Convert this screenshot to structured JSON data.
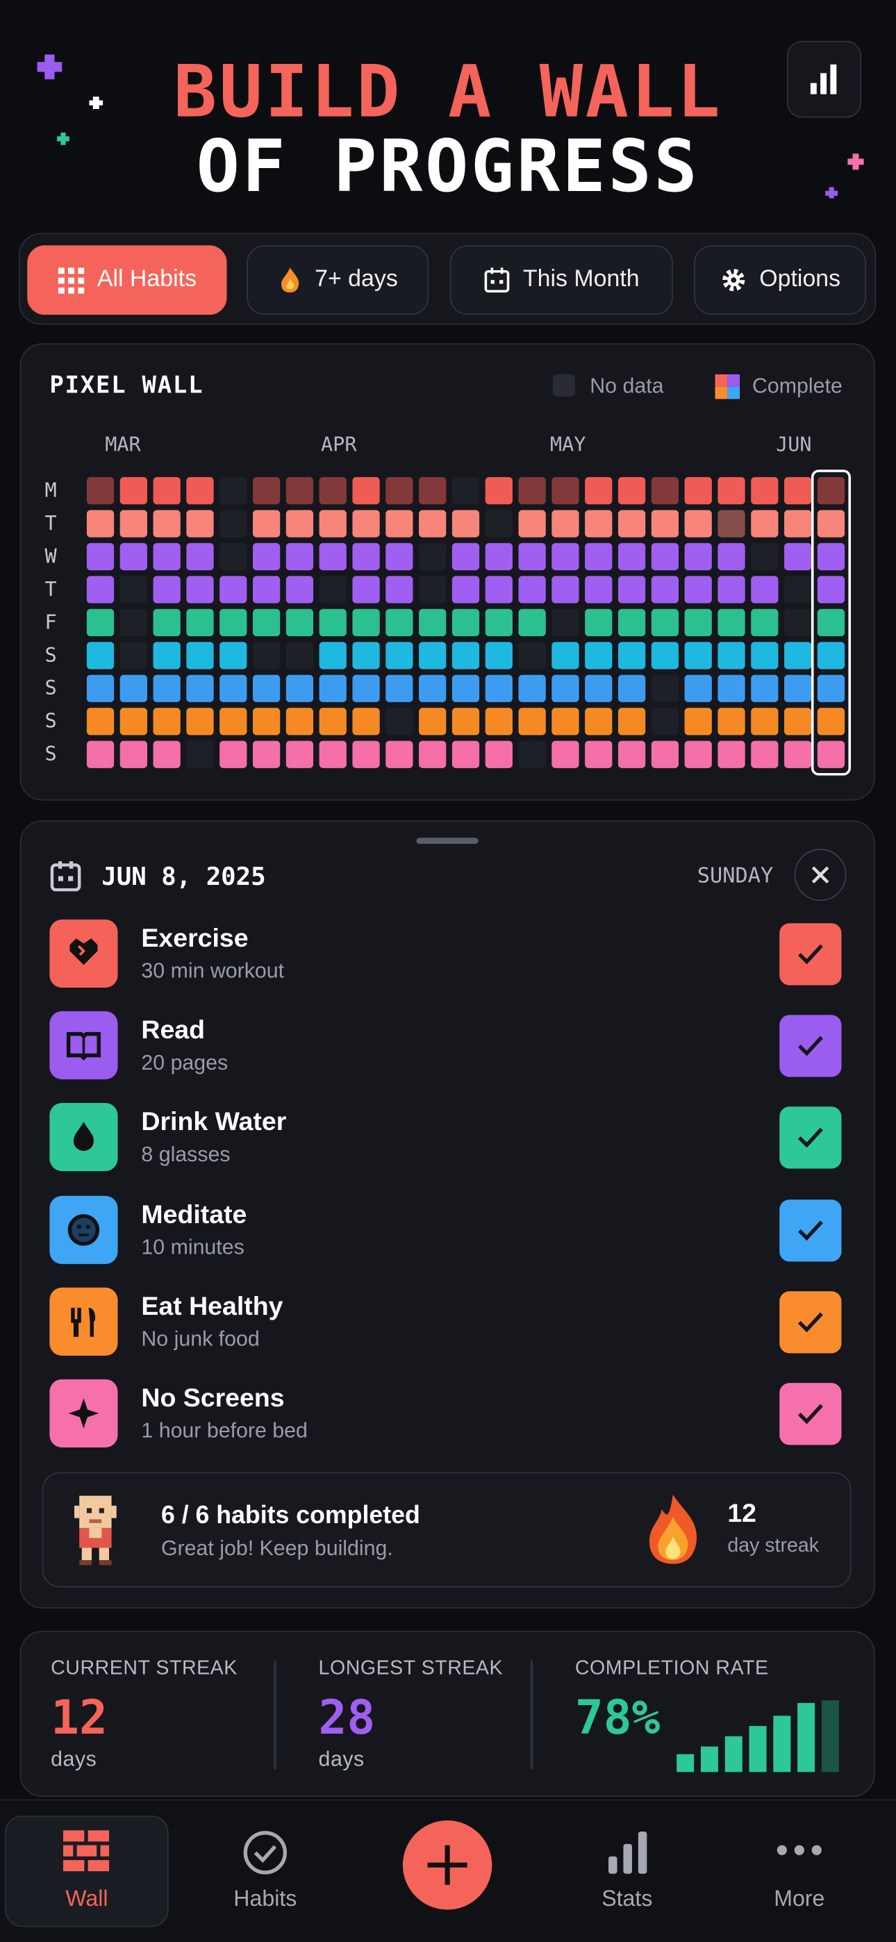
{
  "header": {
    "title_line1": "BUILD A WALL",
    "title_line2": "OF PROGRESS"
  },
  "filters": [
    "All Habits",
    "7+ days",
    "This Month",
    "Options"
  ],
  "wall": {
    "title": "PIXEL WALL",
    "legend": [
      "No data",
      "Complete"
    ],
    "months": [
      "MAR",
      "APR",
      "MAY",
      "JUN"
    ],
    "rows": [
      {
        "label": "M",
        "color": "#f15b55",
        "cells": [
          0.5,
          1,
          1,
          1,
          0,
          0.5,
          0.5,
          0.5,
          1,
          0.5,
          0.5,
          0,
          1,
          0.5,
          0.5,
          1,
          1,
          0.5,
          1,
          1,
          1,
          1,
          0.5
        ]
      },
      {
        "label": "T",
        "color": "#f7857a",
        "cells": [
          1,
          1,
          1,
          1,
          0,
          1,
          1,
          1,
          1,
          1,
          1,
          1,
          0,
          1,
          1,
          1,
          1,
          1,
          1,
          0.5,
          1,
          1,
          1
        ]
      },
      {
        "label": "W",
        "color": "#a05ff0",
        "cells": [
          1,
          1,
          1,
          1,
          0,
          1,
          1,
          1,
          1,
          1,
          0,
          1,
          1,
          1,
          1,
          1,
          1,
          1,
          1,
          1,
          0,
          1,
          1
        ]
      },
      {
        "label": "T",
        "color": "#a05ff0",
        "cells": [
          1,
          0,
          1,
          1,
          1,
          1,
          1,
          0,
          1,
          1,
          0,
          1,
          1,
          1,
          1,
          1,
          1,
          1,
          1,
          1,
          1,
          0,
          1
        ]
      },
      {
        "label": "F",
        "color": "#2cbf8f",
        "cells": [
          1,
          0,
          1,
          1,
          1,
          1,
          1,
          1,
          1,
          1,
          1,
          1,
          1,
          1,
          0,
          1,
          1,
          1,
          1,
          1,
          1,
          0,
          1
        ]
      },
      {
        "label": "S",
        "color": "#1fb8e0",
        "cells": [
          1,
          0,
          1,
          1,
          1,
          0,
          0,
          1,
          1,
          1,
          1,
          1,
          1,
          0,
          1,
          1,
          1,
          1,
          1,
          1,
          1,
          1,
          1
        ]
      },
      {
        "label": "S",
        "color": "#3e9cf0",
        "cells": [
          1,
          1,
          1,
          1,
          1,
          1,
          1,
          1,
          1,
          1,
          1,
          1,
          1,
          1,
          1,
          1,
          1,
          0,
          1,
          1,
          1,
          1,
          1
        ]
      },
      {
        "label": "S",
        "color": "#f58a25",
        "cells": [
          1,
          1,
          1,
          1,
          1,
          1,
          1,
          1,
          1,
          0,
          1,
          1,
          1,
          1,
          1,
          1,
          1,
          0,
          1,
          1,
          1,
          1,
          1
        ]
      },
      {
        "label": "S",
        "color": "#f56fa9",
        "cells": [
          1,
          1,
          1,
          0,
          1,
          1,
          1,
          1,
          1,
          1,
          1,
          1,
          1,
          0,
          1,
          1,
          1,
          1,
          1,
          1,
          1,
          1,
          1
        ]
      }
    ]
  },
  "detail": {
    "date": "JUN 8, 2025",
    "weekday": "SUNDAY",
    "habits": [
      {
        "name": "Exercise",
        "note": "30 min workout",
        "color": "#f5625a"
      },
      {
        "name": "Read",
        "note": "20 pages",
        "color": "#9b5cf0"
      },
      {
        "name": "Drink Water",
        "note": "8 glasses",
        "color": "#2ec79a"
      },
      {
        "name": "Meditate",
        "note": "10 minutes",
        "color": "#3ea6f5"
      },
      {
        "name": "Eat Healthy",
        "note": "No junk food",
        "color": "#f98c2c"
      },
      {
        "name": "No Screens",
        "note": "1 hour before bed",
        "color": "#f670ab"
      }
    ]
  },
  "summary": {
    "completed": "6 / 6 habits completed",
    "message": "Great job! Keep building.",
    "streak_value": 12,
    "streak_label": "day streak"
  },
  "stats": [
    {
      "label": "CURRENT STREAK",
      "value": 12,
      "unit": "days",
      "color": "#f5645a"
    },
    {
      "label": "LONGEST STREAK",
      "value": 28,
      "unit": "days",
      "color": "#a05ff0"
    },
    {
      "label": "COMPLETION RATE",
      "value": "78%",
      "color": "#2ec79a"
    }
  ],
  "completion_bars": [
    14,
    20,
    28,
    36,
    44,
    54,
    56
  ],
  "nav": [
    "Wall",
    "Habits",
    "Stats",
    "More"
  ]
}
